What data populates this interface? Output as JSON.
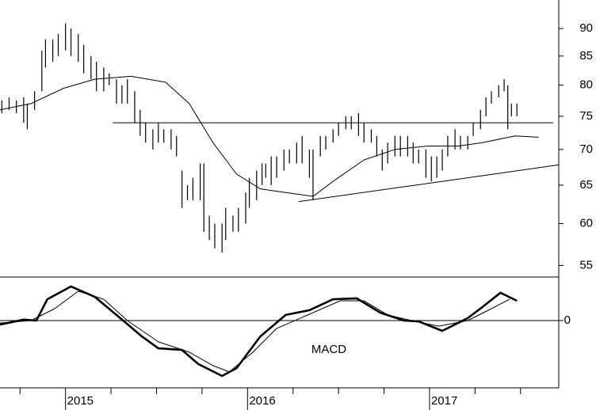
{
  "chart_data": [
    {
      "type": "hilo",
      "log_scale": true,
      "color": "#000000",
      "xlim": [
        2014.64,
        2017.71
      ],
      "ylim": [
        53.7,
        95.5
      ],
      "yticks": [
        55,
        60,
        65,
        70,
        75,
        80,
        85,
        90
      ],
      "x": [
        2014.65,
        2014.69,
        2014.73,
        2014.77,
        2014.79,
        2014.83,
        2014.87,
        2014.89,
        2014.93,
        2014.96,
        2015.0,
        2015.03,
        2015.07,
        2015.1,
        2015.14,
        2015.17,
        2015.21,
        2015.24,
        2015.28,
        2015.31,
        2015.34,
        2015.38,
        2015.41,
        2015.44,
        2015.48,
        2015.51,
        2015.54,
        2015.58,
        2015.61,
        2015.64,
        2015.67,
        2015.7,
        2015.74,
        2015.76,
        2015.79,
        2015.82,
        2015.86,
        2015.88,
        2015.92,
        2015.95,
        2015.99,
        2016.01,
        2016.05,
        2016.08,
        2016.1,
        2016.13,
        2016.16,
        2016.2,
        2016.23,
        2016.27,
        2016.3,
        2016.34,
        2016.36,
        2016.4,
        2016.43,
        2016.47,
        2016.5,
        2016.54,
        2016.57,
        2016.61,
        2016.64,
        2016.68,
        2016.71,
        2016.74,
        2016.77,
        2016.81,
        2016.84,
        2016.88,
        2016.91,
        2016.94,
        2016.98,
        2017.01,
        2017.04,
        2017.07,
        2017.1,
        2017.14,
        2017.17,
        2017.21,
        2017.24,
        2017.28,
        2017.31,
        2017.34,
        2017.38,
        2017.41,
        2017.43,
        2017.45,
        2017.48
      ],
      "high": [
        77.5,
        78,
        77.5,
        78,
        77,
        79,
        86,
        88,
        88,
        89,
        91,
        90,
        89,
        87,
        85,
        84,
        83,
        82,
        81,
        80,
        81,
        79,
        76,
        74,
        73,
        74,
        73,
        73,
        72,
        67,
        65,
        66,
        68,
        68,
        61,
        60,
        60,
        62,
        61,
        62,
        64,
        66,
        67,
        68,
        68,
        69,
        69,
        70,
        70,
        71,
        72,
        70,
        70,
        72,
        72,
        73,
        74,
        75,
        75,
        75.5,
        74,
        73,
        72,
        70,
        71,
        72,
        72,
        72,
        71,
        70,
        70,
        69,
        69,
        70,
        72,
        73,
        72,
        72,
        74,
        76,
        78,
        79,
        80,
        81,
        80,
        77,
        77
      ],
      "low": [
        75.5,
        76,
        75.5,
        74,
        73,
        76,
        79,
        83,
        84,
        85,
        86,
        85,
        84,
        82,
        81,
        79,
        79,
        80,
        77,
        77,
        77,
        74,
        72,
        71,
        70,
        71,
        71,
        70,
        69,
        62,
        63,
        63,
        63,
        59,
        58,
        57,
        56.5,
        58,
        59,
        59,
        60,
        62,
        63,
        65,
        66,
        65,
        66,
        67,
        68,
        68,
        68,
        66,
        63,
        69,
        70,
        71,
        72,
        73,
        73,
        72,
        71,
        71,
        69,
        67,
        68,
        69,
        69,
        69,
        68,
        68,
        66,
        65.5,
        66,
        67,
        69,
        70,
        70,
        70,
        72,
        73,
        75,
        77,
        78,
        79,
        73,
        75,
        75
      ],
      "moving_average": {
        "x": [
          2014.64,
          2014.81,
          2014.99,
          2015.16,
          2015.36,
          2015.55,
          2015.68,
          2015.81,
          2015.94,
          2016.07,
          2016.21,
          2016.36,
          2016.47,
          2016.64,
          2016.81,
          2016.99,
          2017.16,
          2017.29,
          2017.47,
          2017.6
        ],
        "values": [
          76,
          77,
          79.5,
          81,
          81.5,
          80.5,
          77,
          71,
          66.5,
          64.5,
          64,
          63.5,
          65.5,
          68.5,
          70,
          70.5,
          70.5,
          71,
          72,
          71.8
        ]
      },
      "trendlines": [
        {
          "x": [
            2015.26,
            2017.68
          ],
          "values": [
            74,
            74
          ]
        },
        {
          "x": [
            2016.28,
            2017.71
          ],
          "values": [
            62.8,
            67.8
          ]
        }
      ]
    },
    {
      "type": "line",
      "label": "MACD",
      "xlim": [
        2014.64,
        2017.71
      ],
      "ylim": [
        -3,
        1.94
      ],
      "yticks": [
        0
      ],
      "xticks": [
        2015,
        2016,
        2017
      ],
      "xminor": [
        2014.75,
        2015.25,
        2015.5,
        2015.75,
        2016.25,
        2016.5,
        2016.75,
        2017.25,
        2017.5
      ],
      "series": [
        {
          "color": "#000000",
          "width": 2.6,
          "x": [
            2014.64,
            2014.77,
            2014.84,
            2014.9,
            2015.03,
            2015.16,
            2015.29,
            2015.42,
            2015.51,
            2015.64,
            2015.73,
            2015.86,
            2015.94,
            2016.07,
            2016.21,
            2016.34,
            2016.47,
            2016.6,
            2016.73,
            2016.86,
            2016.94,
            2017.07,
            2017.21,
            2017.29,
            2017.39,
            2017.48
          ],
          "values": [
            -0.18,
            0.04,
            0,
            0.95,
            1.52,
            1.06,
            0.18,
            -0.71,
            -1.24,
            -1.31,
            -1.94,
            -2.47,
            -2.12,
            -0.71,
            0.25,
            0.46,
            0.95,
            0.99,
            0.35,
            0,
            -0.04,
            -0.46,
            0.11,
            0.6,
            1.24,
            0.88
          ]
        },
        {
          "color": "#000000",
          "width": 1,
          "x": [
            2014.64,
            2014.81,
            2014.94,
            2015.07,
            2015.21,
            2015.34,
            2015.51,
            2015.68,
            2015.81,
            2015.9,
            2016.03,
            2016.16,
            2016.34,
            2016.51,
            2016.64,
            2016.77,
            2016.9,
            2017.05,
            2017.21,
            2017.34,
            2017.44
          ],
          "values": [
            -0.11,
            0,
            0.53,
            1.31,
            0.95,
            0,
            -0.95,
            -1.41,
            -2.01,
            -2.29,
            -1.41,
            -0.35,
            0.28,
            0.88,
            0.88,
            0.25,
            0,
            -0.25,
            0,
            0.53,
            0.95
          ]
        }
      ]
    }
  ]
}
